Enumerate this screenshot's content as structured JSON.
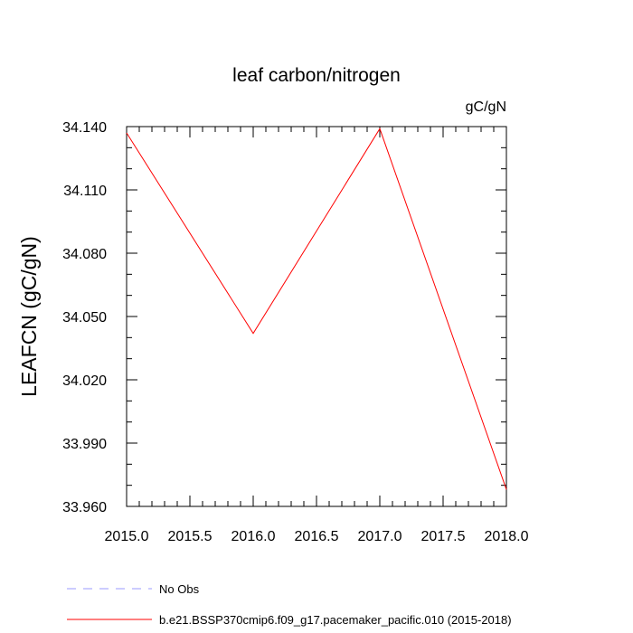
{
  "chart_data": {
    "type": "line",
    "title": "leaf carbon/nitrogen",
    "units": "gC/gN",
    "ylabel": "LEAFCN  (gC/gN)",
    "xlabel": "",
    "xlim": [
      2015.0,
      2018.0
    ],
    "ylim": [
      33.96,
      34.14
    ],
    "x_ticks": [
      "2015.0",
      "2015.5",
      "2016.0",
      "2016.5",
      "2017.0",
      "2017.5",
      "2018.0"
    ],
    "y_ticks": [
      "34.140",
      "34.110",
      "34.080",
      "34.050",
      "34.020",
      "33.990",
      "33.960"
    ],
    "grid": false,
    "series": [
      {
        "name": "b.e21.BSSP370cmip6.f09_g17.pacemaker_pacific.010 (2015-2018)",
        "color": "#ff0000",
        "style": "solid",
        "x": [
          2015.0,
          2016.0,
          2017.0,
          2018.0
        ],
        "y": [
          34.137,
          34.042,
          34.139,
          33.968
        ]
      }
    ],
    "legend": [
      {
        "label": "No Obs",
        "color": "#9999ff",
        "style": "dashed"
      },
      {
        "label": "b.e21.BSSP370cmip6.f09_g17.pacemaker_pacific.010 (2015-2018)",
        "color": "#ff0000",
        "style": "solid"
      }
    ],
    "legend_position": "bottom-left"
  }
}
